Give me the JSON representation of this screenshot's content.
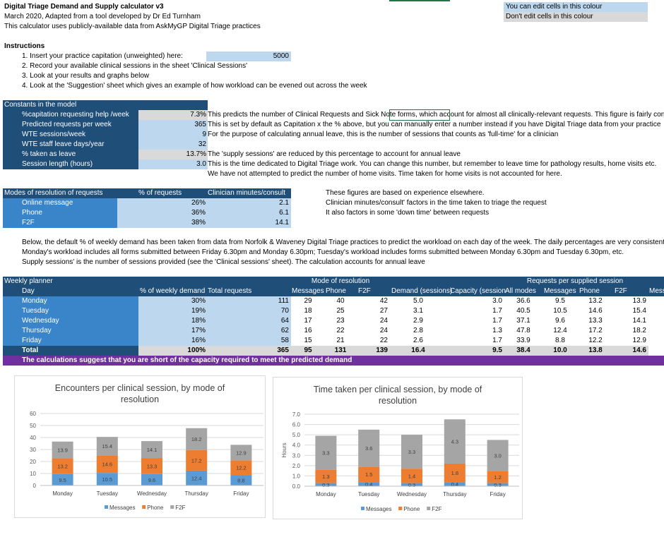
{
  "header": {
    "title": "Digital Triage Demand and Supply calculator v3",
    "subtitle": "March 2020, Adapted from a tool developed by Dr Ed Turnham",
    "source_note": "This calculator uses publicly-available data from AskMyGP Digital Triage practices"
  },
  "legend": {
    "editable": "You can edit cells in this colour",
    "not_editable": "Don't edit cells in this colour"
  },
  "instructions": {
    "heading": "Instructions",
    "steps": [
      "1. Insert your practice capitation (unweighted) here:",
      "2. Record your available clinical sessions in the sheet 'Clinical Sessions'",
      "3. Look at your results and graphs below",
      "4. Look at the 'Suggestion' sheet which gives an example of how workload can be evened out across the week"
    ],
    "capitation_value": "5000"
  },
  "constants": {
    "heading": "Constants in the model",
    "rows": [
      {
        "label": "%capitation requesting help /week",
        "value": "7.3%",
        "note": "This predicts the number of Clinical Requests and Sick Note forms, which account for almost all clinically-relevant requests. This figure is fairly consist"
      },
      {
        "label": "Predicted requests per week",
        "value": "365",
        "note": "This is set by default as Capitation x the % above, but you can manually enter a number instead if you have Digital Triage data from your practice"
      },
      {
        "label": "WTE sessions/week",
        "value": "9",
        "note": "For the purpose of calculating annual leave, this is the number of sessions that counts as 'full-time' for a clinician"
      },
      {
        "label": "WTE staff leave days/year",
        "value": "32",
        "note": ""
      },
      {
        "label": "% taken as leave",
        "value": "13.7%",
        "note": "The 'supply sessions' are reduced by this percentage to account for annual leave"
      },
      {
        "label": "Session length (hours)",
        "value": "3.0",
        "note": "This is the time dedicated to Digital Triage work. You can change this number, but remember to leave time for pathology results, home visits etc."
      }
    ],
    "extra_note": "We have not attempted to predict the number of home visits. Time taken for home visits is not accounted for here."
  },
  "modes": {
    "headers": [
      "Modes of resolution of requests",
      "% of requests",
      "Clinician minutes/consult"
    ],
    "rows": [
      {
        "label": "Online message",
        "pct": "26%",
        "mins": "2.1"
      },
      {
        "label": "Phone",
        "pct": "36%",
        "mins": "6.1"
      },
      {
        "label": "F2F",
        "pct": "38%",
        "mins": "14.1"
      }
    ],
    "notes": [
      "These figures are based on experience elsewhere.",
      "Clinician minutes/consult' factors in the time taken to triage the request",
      "It also factors in some 'down time' between requests"
    ]
  },
  "explanation": [
    "Below, the default % of weekly demand has been taken from data from Norfolk & Waveney Digital Triage practices to predict the workload on each day of the week. The daily percentages are very consistent acr",
    "Monday's workload includes all forms submitted between Friday 6.30pm and Monday 6.30pm; Tuesday's workload includes forms submitted between Monday 6.30pm and Tuesday 6.30pm, etc.",
    "Supply sessions' is the number of sessions provided (see the 'Clinical sessions' sheet). The calculation accounts for annual leave"
  ],
  "planner": {
    "title": "Weekly planner",
    "group_mode": "Mode of resolution",
    "group_requests": "Requests per supplied session",
    "headers": [
      "Day",
      "% of weekly demand",
      "Total requests",
      "Messages",
      "Phone",
      "F2F",
      "Demand (sessions)",
      "Capacity (session",
      "All modes",
      "Messages",
      "Phone",
      "F2F",
      "Mess"
    ],
    "rows": [
      {
        "day": "Monday",
        "pct": "30%",
        "total": "111",
        "msg": "29",
        "phone": "40",
        "f2f": "42",
        "demand": "5.0",
        "capacity": "3.0",
        "all": "36.6",
        "rmsg": "9.5",
        "rphone": "13.2",
        "rf2f": "13.9"
      },
      {
        "day": "Tuesday",
        "pct": "19%",
        "total": "70",
        "msg": "18",
        "phone": "25",
        "f2f": "27",
        "demand": "3.1",
        "capacity": "1.7",
        "all": "40.5",
        "rmsg": "10.5",
        "rphone": "14.6",
        "rf2f": "15.4"
      },
      {
        "day": "Wednesday",
        "pct": "18%",
        "total": "64",
        "msg": "17",
        "phone": "23",
        "f2f": "24",
        "demand": "2.9",
        "capacity": "1.7",
        "all": "37.1",
        "rmsg": "9.6",
        "rphone": "13.3",
        "rf2f": "14.1"
      },
      {
        "day": "Thursday",
        "pct": "17%",
        "total": "62",
        "msg": "16",
        "phone": "22",
        "f2f": "24",
        "demand": "2.8",
        "capacity": "1.3",
        "all": "47.8",
        "rmsg": "12.4",
        "rphone": "17.2",
        "rf2f": "18.2"
      },
      {
        "day": "Friday",
        "pct": "16%",
        "total": "58",
        "msg": "15",
        "phone": "21",
        "f2f": "22",
        "demand": "2.6",
        "capacity": "1.7",
        "all": "33.9",
        "rmsg": "8.8",
        "rphone": "12.2",
        "rf2f": "12.9"
      }
    ],
    "total_row": {
      "day": "Total",
      "pct": "100%",
      "total": "365",
      "msg": "95",
      "phone": "131",
      "f2f": "139",
      "demand": "16.4",
      "capacity": "9.5",
      "all": "38.4",
      "rmsg": "10.0",
      "rphone": "13.8",
      "rf2f": "14.6"
    },
    "warning": "The calculations suggest that you are short of the capacity required to meet the predicted demand"
  },
  "colors": {
    "messages": "#5b9bd5",
    "phone": "#ed7d31",
    "f2f": "#a5a5a5"
  },
  "chart_data": [
    {
      "type": "bar",
      "stacked": true,
      "title": "Encounters per clinical session, by mode of resolution",
      "categories": [
        "Monday",
        "Tuesday",
        "Wednesday",
        "Thursday",
        "Friday"
      ],
      "series": [
        {
          "name": "Messages",
          "values": [
            9.5,
            10.5,
            9.6,
            12.4,
            8.8
          ]
        },
        {
          "name": "Phone",
          "values": [
            13.2,
            14.6,
            13.3,
            17.2,
            12.2
          ]
        },
        {
          "name": "F2F",
          "values": [
            13.9,
            15.4,
            14.1,
            18.2,
            12.9
          ]
        }
      ],
      "ylim": [
        0,
        60
      ],
      "yticks": [
        "0",
        "10",
        "20",
        "30",
        "40",
        "50",
        "60"
      ],
      "ylabel": "",
      "grid": true,
      "legend": "bottom"
    },
    {
      "type": "bar",
      "stacked": true,
      "title": "Time taken per clinical session, by mode of resolution",
      "categories": [
        "Monday",
        "Tuesday",
        "Wednesday",
        "Thursday",
        "Friday"
      ],
      "series": [
        {
          "name": "Messages",
          "values": [
            0.3,
            0.4,
            0.3,
            0.4,
            0.3
          ]
        },
        {
          "name": "Phone",
          "values": [
            1.3,
            1.5,
            1.4,
            1.8,
            1.2
          ]
        },
        {
          "name": "F2F",
          "values": [
            3.3,
            3.6,
            3.3,
            4.3,
            3.0
          ]
        }
      ],
      "ylim": [
        0,
        7
      ],
      "yticks": [
        "0.0",
        "1.0",
        "2.0",
        "3.0",
        "4.0",
        "5.0",
        "6.0",
        "7.0"
      ],
      "ylabel": "Hours",
      "grid": true,
      "legend": "bottom"
    }
  ]
}
